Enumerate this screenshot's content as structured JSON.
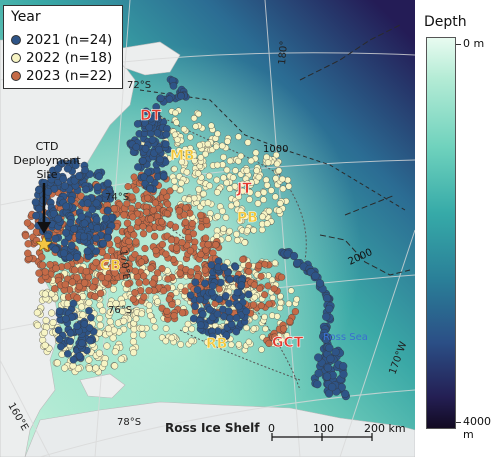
{
  "legend": {
    "title": "Year",
    "items": [
      {
        "label": "2021 (n=24)",
        "color": "#2e5487"
      },
      {
        "label": "2022 (n=18)",
        "color": "#f7f4c4"
      },
      {
        "label": "2023 (n=22)",
        "color": "#c46a47"
      }
    ]
  },
  "colorbar": {
    "title": "Depth",
    "top_label": "0 m",
    "bottom_label": "4000 m",
    "range_m": [
      0,
      4000
    ]
  },
  "regions": {
    "dt": "DT",
    "mb": "MB",
    "jt": "JT",
    "pb": "PB",
    "cb": "CB",
    "rb": "RB",
    "gct": "GCT",
    "ross_sea": "Ross Sea",
    "ross_ice_shelf": "Ross Ice Shelf"
  },
  "deployment": {
    "line1": "CTD",
    "line2": "Deployment",
    "line3": "Site"
  },
  "graticule": {
    "lat_72": "72°S",
    "lat_74": "74°S",
    "lat_76": "76°S",
    "lat_78": "78°S",
    "lon_170e": "170°E",
    "lon_160e": "160°E",
    "lon_180": "180°",
    "lon_170w": "170°W"
  },
  "contours": {
    "c1000": "1000",
    "c2000": "2000"
  },
  "scalebar": {
    "t0": "0",
    "t100": "100",
    "t200": "200 km"
  },
  "colors": {
    "label_red": "#e23a2e",
    "label_yellow": "#f2c83a",
    "ross_sea_text": "#3b6fd0"
  }
}
